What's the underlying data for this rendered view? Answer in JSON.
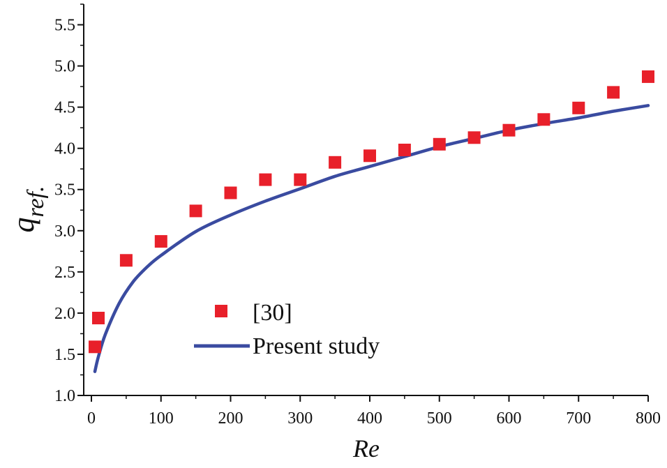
{
  "chart_data": {
    "type": "scatter",
    "title": "",
    "xlabel": "Re",
    "ylabel_main": "q",
    "ylabel_sub": "ref.",
    "xlim": [
      0,
      800
    ],
    "ylim": [
      1.0,
      5.75
    ],
    "xticks": [
      0,
      100,
      200,
      300,
      400,
      500,
      600,
      700,
      800
    ],
    "yticks": [
      1.0,
      1.5,
      2.0,
      2.5,
      3.0,
      3.5,
      4.0,
      4.5,
      5.0,
      5.5
    ],
    "grid": false,
    "legend_position": "lower-center",
    "series": [
      {
        "name": "[30]",
        "kind": "markers",
        "color": "#e8202a",
        "x": [
          5,
          10,
          50,
          100,
          150,
          200,
          250,
          300,
          350,
          400,
          450,
          500,
          550,
          600,
          650,
          700,
          750,
          800
        ],
        "y": [
          1.59,
          1.94,
          2.64,
          2.87,
          3.24,
          3.46,
          3.62,
          3.62,
          3.83,
          3.91,
          3.98,
          4.05,
          4.13,
          4.22,
          4.35,
          4.49,
          4.68,
          4.87
        ]
      },
      {
        "name": "Present study",
        "kind": "line",
        "color": "#3a4ba0",
        "x": [
          5,
          10,
          20,
          40,
          60,
          80,
          100,
          150,
          200,
          250,
          300,
          350,
          400,
          450,
          500,
          550,
          600,
          650,
          700,
          750,
          800
        ],
        "y": [
          1.29,
          1.47,
          1.74,
          2.12,
          2.38,
          2.56,
          2.7,
          2.99,
          3.19,
          3.36,
          3.51,
          3.66,
          3.78,
          3.9,
          4.02,
          4.12,
          4.22,
          4.3,
          4.37,
          4.45,
          4.52
        ]
      }
    ]
  }
}
